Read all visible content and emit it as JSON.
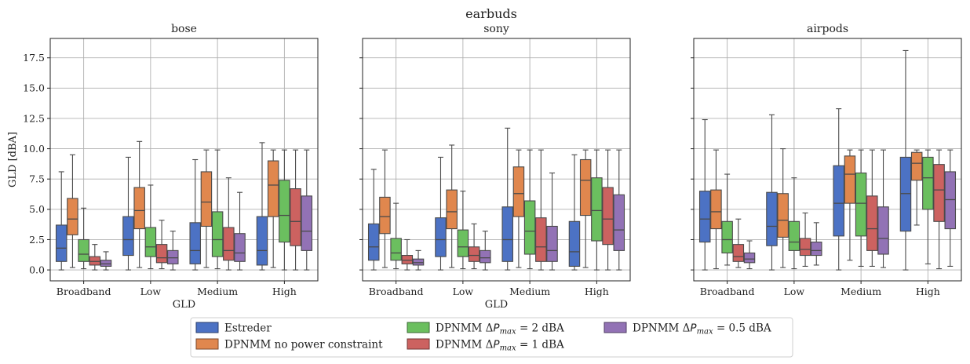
{
  "chart_data": {
    "type": "boxplot",
    "suptitle": "earbuds",
    "y_axis": {
      "label": "GLD [dBA]",
      "ylim": [
        -0.9,
        19.1
      ],
      "ticks": [
        0.0,
        2.5,
        5.0,
        7.5,
        10.0,
        12.5,
        15.0,
        17.5
      ],
      "tick_labels": [
        "0.0",
        "2.5",
        "5.0",
        "7.5",
        "10.0",
        "12.5",
        "15.0",
        "17.5"
      ]
    },
    "x_label": "GLD",
    "categories": [
      "Broadband",
      "Low",
      "Medium",
      "High"
    ],
    "grid": true,
    "legend": {
      "placement": "bottom-center",
      "entries": [
        {
          "label": "Estreder",
          "color": "#4c72c4"
        },
        {
          "label": "DPNMM no power constraint",
          "color": "#e0874e"
        },
        {
          "label": "DPNMM ΔP_max = 2 dBA",
          "color": "#6bbf5f"
        },
        {
          "label": "DPNMM ΔP_max = 1 dBA",
          "color": "#cc6260"
        },
        {
          "label": "DPNMM ΔP_max = 0.5 dBA",
          "color": "#9272b5"
        }
      ]
    },
    "panels": [
      {
        "title": "bose",
        "show_y_labels": true,
        "show_x_label": true,
        "boxes": [
          [
            [
              0,
              0.7,
              1.8,
              3.7,
              8.1
            ],
            [
              0.2,
              2.9,
              4.2,
              5.9,
              9.5
            ],
            [
              0.1,
              0.7,
              1.3,
              2.5,
              5.1
            ],
            [
              0,
              0.4,
              0.7,
              1.1,
              2.1
            ],
            [
              0,
              0.3,
              0.5,
              0.8,
              1.5
            ]
          ],
          [
            [
              0,
              1.2,
              2.5,
              4.4,
              9.3
            ],
            [
              0.2,
              3.4,
              4.9,
              6.8,
              10.6
            ],
            [
              0.1,
              1.1,
              1.9,
              3.5,
              7.0
            ],
            [
              0.1,
              0.6,
              1.0,
              2.1,
              4.1
            ],
            [
              0,
              0.5,
              1.0,
              1.6,
              3.2
            ]
          ],
          [
            [
              0,
              0.5,
              1.6,
              3.9,
              9.1
            ],
            [
              0.2,
              3.6,
              5.6,
              8.1,
              9.9
            ],
            [
              0.1,
              1.1,
              2.5,
              4.8,
              9.9
            ],
            [
              0,
              0.8,
              1.6,
              3.5,
              7.6
            ],
            [
              0,
              0.7,
              1.4,
              3.0,
              6.4
            ]
          ],
          [
            [
              0,
              0.4,
              1.6,
              4.4,
              10.5
            ],
            [
              0.2,
              4.4,
              7.0,
              9.0,
              9.9
            ],
            [
              0,
              2.3,
              4.5,
              7.4,
              9.9
            ],
            [
              0,
              2.0,
              4.0,
              6.7,
              9.9
            ],
            [
              0,
              1.6,
              3.2,
              6.1,
              9.9
            ]
          ]
        ]
      },
      {
        "title": "sony",
        "show_y_labels": false,
        "show_x_label": true,
        "boxes": [
          [
            [
              0,
              0.8,
              1.9,
              3.8,
              8.3
            ],
            [
              0.2,
              3.0,
              4.4,
              6.0,
              9.9
            ],
            [
              0.1,
              0.8,
              1.4,
              2.6,
              5.5
            ],
            [
              0,
              0.5,
              0.8,
              1.2,
              2.5
            ],
            [
              0,
              0.4,
              0.6,
              0.9,
              1.6
            ]
          ],
          [
            [
              0,
              1.1,
              2.5,
              4.3,
              9.3
            ],
            [
              0.2,
              3.4,
              4.8,
              6.6,
              10.3
            ],
            [
              0.1,
              1.1,
              1.9,
              3.3,
              6.5
            ],
            [
              0.1,
              0.7,
              1.2,
              1.9,
              3.8
            ],
            [
              0,
              0.6,
              1.0,
              1.6,
              3.2
            ]
          ],
          [
            [
              0,
              0.7,
              2.5,
              5.2,
              11.7
            ],
            [
              0.2,
              4.4,
              6.3,
              8.5,
              9.9
            ],
            [
              0.1,
              1.3,
              3.2,
              5.7,
              9.9
            ],
            [
              0,
              0.7,
              1.9,
              4.3,
              9.9
            ],
            [
              0,
              0.7,
              1.6,
              3.6,
              8.0
            ]
          ],
          [
            [
              0,
              0.3,
              1.5,
              4.0,
              9.5
            ],
            [
              0.2,
              4.5,
              7.4,
              9.1,
              9.9
            ],
            [
              0,
              2.4,
              4.9,
              7.6,
              9.9
            ],
            [
              0,
              2.1,
              4.2,
              6.8,
              9.9
            ],
            [
              0,
              1.6,
              3.3,
              6.2,
              9.9
            ]
          ]
        ]
      },
      {
        "title": "airpods",
        "show_y_labels": false,
        "show_x_label": false,
        "boxes": [
          [
            [
              0,
              2.3,
              4.2,
              6.5,
              12.4
            ],
            [
              0.1,
              3.4,
              4.8,
              6.6,
              9.9
            ],
            [
              0.4,
              1.4,
              2.5,
              4.0,
              7.9
            ],
            [
              0.2,
              0.7,
              1.1,
              2.1,
              4.2
            ],
            [
              0.1,
              0.6,
              0.9,
              1.4,
              2.4
            ]
          ],
          [
            [
              0,
              2.0,
              3.6,
              6.4,
              12.8
            ],
            [
              0.2,
              2.7,
              4.1,
              6.3,
              10.0
            ],
            [
              0.1,
              1.6,
              2.3,
              4.0,
              7.6
            ],
            [
              0.3,
              1.2,
              1.7,
              2.6,
              4.7
            ],
            [
              0.4,
              1.2,
              1.6,
              2.3,
              3.9
            ]
          ],
          [
            [
              0,
              2.8,
              5.5,
              8.6,
              13.3
            ],
            [
              0.8,
              5.5,
              7.9,
              9.4,
              9.9
            ],
            [
              0.3,
              2.8,
              5.5,
              8.0,
              9.9
            ],
            [
              0.3,
              1.6,
              3.4,
              6.1,
              9.9
            ],
            [
              0.2,
              1.3,
              2.6,
              5.2,
              9.9
            ]
          ],
          [
            [
              0,
              3.2,
              6.3,
              9.3,
              18.1
            ],
            [
              3.7,
              7.4,
              8.8,
              9.7,
              9.9
            ],
            [
              0.5,
              5.0,
              7.6,
              9.3,
              9.9
            ],
            [
              0.1,
              4.0,
              6.6,
              8.7,
              9.9
            ],
            [
              0.3,
              3.4,
              5.8,
              8.1,
              9.9
            ]
          ]
        ]
      }
    ]
  }
}
